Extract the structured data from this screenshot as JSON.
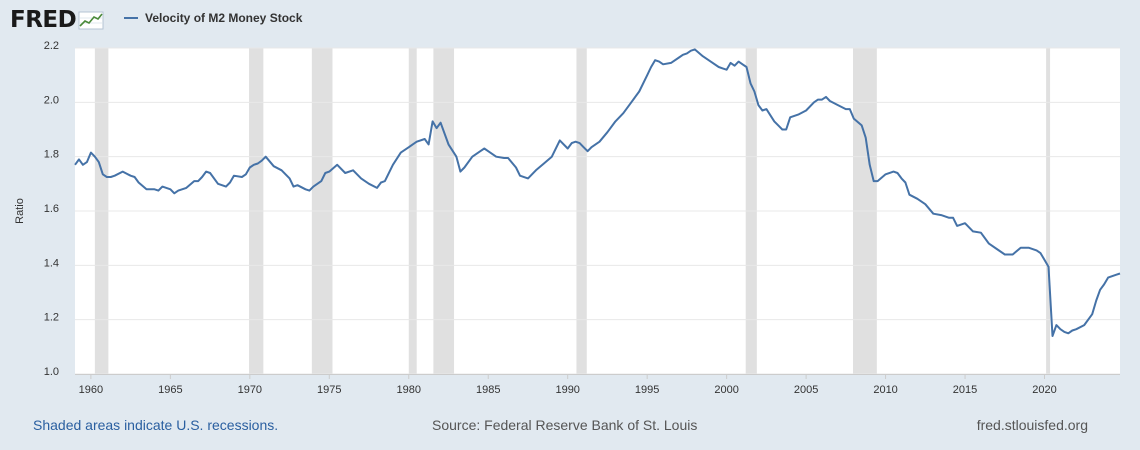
{
  "header": {
    "logo_text": "FRED",
    "logo_icon": "chart-line-icon",
    "legend_label": "Velocity of M2 Money Stock"
  },
  "footer": {
    "recession_note": "Shaded areas indicate U.S. recessions.",
    "source": "Source: Federal Reserve Bank of St. Louis",
    "site": "fred.stlouisfed.org"
  },
  "colors": {
    "line": "#4572a7",
    "plot_bg": "#ffffff",
    "page_bg": "#e1e9f0",
    "recession": "#e0e0e0",
    "grid": "#e8e8e8"
  },
  "chart_data": {
    "type": "line",
    "title": "Velocity of M2 Money Stock",
    "xlabel": "",
    "ylabel": "Ratio",
    "xlim": [
      1959.0,
      2024.75
    ],
    "ylim": [
      1.0,
      2.2
    ],
    "x_ticks": [
      1960,
      1965,
      1970,
      1975,
      1980,
      1985,
      1990,
      1995,
      2000,
      2005,
      2010,
      2015,
      2020
    ],
    "y_ticks": [
      1.0,
      1.2,
      1.4,
      1.6,
      1.8,
      2.0,
      2.2
    ],
    "grid": true,
    "legend_position": "top-left",
    "recessions": [
      [
        1960.25,
        1961.1
      ],
      [
        1969.95,
        1970.85
      ],
      [
        1973.9,
        1975.2
      ],
      [
        1980.0,
        1980.5
      ],
      [
        1981.55,
        1982.85
      ],
      [
        1990.55,
        1991.2
      ],
      [
        2001.2,
        2001.9
      ],
      [
        2007.95,
        2009.45
      ],
      [
        2020.1,
        2020.35
      ]
    ],
    "series": [
      {
        "name": "Velocity of M2 Money Stock",
        "x": [
          1959.0,
          1959.25,
          1959.5,
          1959.75,
          1960.0,
          1960.25,
          1960.5,
          1960.75,
          1961.0,
          1961.25,
          1961.5,
          1962.0,
          1962.5,
          1962.75,
          1963.0,
          1963.5,
          1964.0,
          1964.25,
          1964.5,
          1965.0,
          1965.25,
          1965.5,
          1966.0,
          1966.5,
          1966.75,
          1967.0,
          1967.25,
          1967.5,
          1968.0,
          1968.5,
          1968.75,
          1969.0,
          1969.5,
          1969.75,
          1970.0,
          1970.25,
          1970.5,
          1970.75,
          1971.0,
          1971.5,
          1972.0,
          1972.5,
          1972.75,
          1973.0,
          1973.5,
          1973.75,
          1974.0,
          1974.5,
          1974.75,
          1975.0,
          1975.5,
          1976.0,
          1976.5,
          1977.0,
          1977.5,
          1978.0,
          1978.25,
          1978.5,
          1979.0,
          1979.5,
          1980.0,
          1980.25,
          1980.5,
          1981.0,
          1981.25,
          1981.5,
          1981.75,
          1982.0,
          1982.5,
          1983.0,
          1983.25,
          1983.5,
          1984.0,
          1984.5,
          1984.75,
          1985.0,
          1985.5,
          1986.0,
          1986.25,
          1986.75,
          1987.0,
          1987.5,
          1988.0,
          1988.5,
          1989.0,
          1989.5,
          1990.0,
          1990.25,
          1990.5,
          1990.75,
          1991.0,
          1991.25,
          1991.5,
          1992.0,
          1992.5,
          1993.0,
          1993.5,
          1994.0,
          1994.5,
          1995.0,
          1995.25,
          1995.5,
          1995.75,
          1996.0,
          1996.5,
          1997.0,
          1997.25,
          1997.5,
          1997.75,
          1998.0,
          1998.5,
          1999.0,
          1999.5,
          1999.75,
          2000.0,
          2000.25,
          2000.5,
          2000.75,
          2001.0,
          2001.25,
          2001.5,
          2001.75,
          2002.0,
          2002.25,
          2002.5,
          2003.0,
          2003.25,
          2003.5,
          2003.75,
          2004.0,
          2004.5,
          2005.0,
          2005.5,
          2005.75,
          2006.0,
          2006.25,
          2006.5,
          2007.0,
          2007.5,
          2007.75,
          2008.0,
          2008.5,
          2008.75,
          2009.0,
          2009.25,
          2009.5,
          2010.0,
          2010.5,
          2010.75,
          2011.0,
          2011.25,
          2011.5,
          2012.0,
          2012.5,
          2013.0,
          2013.5,
          2014.0,
          2014.25,
          2014.5,
          2015.0,
          2015.5,
          2016.0,
          2016.5,
          2017.0,
          2017.5,
          2018.0,
          2018.5,
          2019.0,
          2019.5,
          2019.75,
          2020.0,
          2020.25,
          2020.5,
          2020.75,
          2021.0,
          2021.25,
          2021.5,
          2021.75,
          2022.0,
          2022.5,
          2023.0,
          2023.25,
          2023.5,
          2023.75,
          2024.0,
          2024.5,
          2024.75
        ],
        "y": [
          1.77,
          1.79,
          1.77,
          1.78,
          1.815,
          1.8,
          1.78,
          1.735,
          1.725,
          1.725,
          1.73,
          1.745,
          1.73,
          1.725,
          1.705,
          1.68,
          1.68,
          1.675,
          1.69,
          1.68,
          1.665,
          1.675,
          1.685,
          1.71,
          1.71,
          1.725,
          1.745,
          1.74,
          1.7,
          1.69,
          1.705,
          1.73,
          1.725,
          1.735,
          1.76,
          1.77,
          1.775,
          1.785,
          1.8,
          1.765,
          1.75,
          1.72,
          1.69,
          1.695,
          1.68,
          1.675,
          1.69,
          1.71,
          1.74,
          1.745,
          1.77,
          1.74,
          1.75,
          1.72,
          1.7,
          1.685,
          1.705,
          1.71,
          1.77,
          1.815,
          1.835,
          1.845,
          1.855,
          1.865,
          1.845,
          1.93,
          1.905,
          1.925,
          1.845,
          1.8,
          1.745,
          1.76,
          1.8,
          1.82,
          1.83,
          1.82,
          1.8,
          1.795,
          1.795,
          1.76,
          1.73,
          1.72,
          1.75,
          1.775,
          1.8,
          1.86,
          1.83,
          1.85,
          1.855,
          1.85,
          1.835,
          1.82,
          1.835,
          1.855,
          1.89,
          1.93,
          1.96,
          2.0,
          2.04,
          2.1,
          2.13,
          2.155,
          2.15,
          2.14,
          2.145,
          2.165,
          2.175,
          2.18,
          2.19,
          2.195,
          2.17,
          2.15,
          2.13,
          2.125,
          2.12,
          2.145,
          2.135,
          2.15,
          2.14,
          2.13,
          2.07,
          2.04,
          1.99,
          1.97,
          1.975,
          1.93,
          1.915,
          1.9,
          1.9,
          1.945,
          1.955,
          1.97,
          2.0,
          2.01,
          2.01,
          2.02,
          2.005,
          1.99,
          1.975,
          1.975,
          1.94,
          1.915,
          1.87,
          1.77,
          1.71,
          1.71,
          1.735,
          1.745,
          1.74,
          1.72,
          1.705,
          1.66,
          1.645,
          1.625,
          1.59,
          1.585,
          1.575,
          1.575,
          1.545,
          1.555,
          1.525,
          1.52,
          1.48,
          1.46,
          1.44,
          1.44,
          1.465,
          1.465,
          1.455,
          1.445,
          1.42,
          1.395,
          1.14,
          1.18,
          1.165,
          1.155,
          1.15,
          1.16,
          1.165,
          1.18,
          1.22,
          1.27,
          1.31,
          1.33,
          1.355,
          1.365,
          1.37
        ]
      }
    ]
  }
}
